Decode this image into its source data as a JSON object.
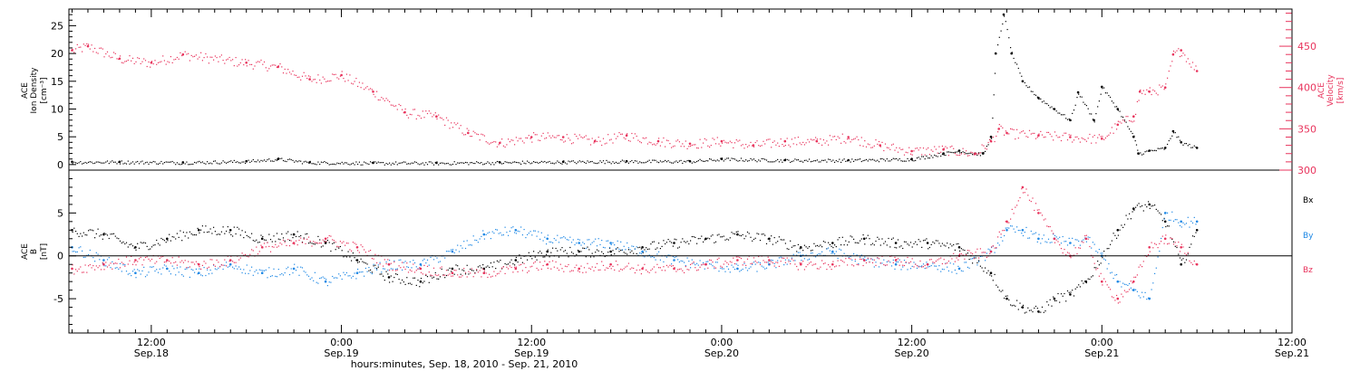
{
  "colors": {
    "density": "#000000",
    "velocity": "#e8335c",
    "bx": "#000000",
    "by": "#1e88e5",
    "bz": "#e8335c"
  },
  "time_axis": {
    "label": "hours:minutes, Sep. 18, 2010 - Sep. 21, 2010",
    "ticks": [
      {
        "h": 12,
        "time": "12:00",
        "day": "Sep.18"
      },
      {
        "h": 24,
        "time": "0:00",
        "day": "Sep.19"
      },
      {
        "h": 36,
        "time": "12:00",
        "day": "Sep.19"
      },
      {
        "h": 48,
        "time": "0:00",
        "day": "Sep.20"
      },
      {
        "h": 60,
        "time": "12:00",
        "day": "Sep.20"
      },
      {
        "h": 72,
        "time": "0:00",
        "day": "Sep.21"
      },
      {
        "h": 84,
        "time": "12:00",
        "day": "Sep.21"
      }
    ]
  },
  "panel_top": {
    "left_label": [
      "ACE",
      "Ion Density",
      "[cm⁻³]"
    ],
    "right_label": [
      "ACE",
      "Velocity",
      "[km/s]"
    ],
    "left_ticks": [
      "0",
      "5",
      "10",
      "15",
      "20",
      "25"
    ],
    "right_ticks": [
      "300",
      "350",
      "400",
      "450"
    ]
  },
  "panel_bottom": {
    "left_label": [
      "ACE",
      "B",
      "[nT]"
    ],
    "left_ticks": [
      "-5",
      "0",
      "5"
    ],
    "legend": [
      "Bx",
      "By",
      "Bz"
    ]
  },
  "chart_data": [
    {
      "type": "scatter",
      "title": "",
      "xlabel": "hours:minutes, Sep. 18, 2010 - Sep. 21, 2010",
      "x_unit": "hours from 2010-09-18 00:00",
      "xlim": [
        6.8,
        84
      ],
      "series": [
        {
          "name": "Ion Density",
          "axis": "left",
          "ylim": [
            -1,
            28
          ],
          "ylabel": "ACE Ion Density [cm^-3]",
          "x": [
            7,
            10,
            14,
            18,
            20,
            22,
            26,
            30,
            34,
            38,
            42,
            46,
            48,
            52,
            56,
            60,
            62,
            63,
            64,
            64.5,
            65,
            65.3,
            65.8,
            66.3,
            67,
            68,
            69,
            70,
            70.5,
            71.5,
            72,
            73,
            74,
            74.3,
            75,
            76,
            76.5,
            77,
            78
          ],
          "y": [
            0.5,
            0.5,
            0.4,
            0.6,
            1.0,
            0.4,
            0.3,
            0.3,
            0.4,
            0.5,
            0.6,
            0.6,
            1.0,
            0.8,
            0.8,
            1.0,
            2.0,
            2.5,
            2.0,
            2.0,
            5.0,
            20.0,
            27.0,
            20.0,
            15.0,
            12.0,
            10.0,
            8.0,
            13.0,
            8.0,
            14.0,
            10.0,
            5.0,
            2.0,
            2.5,
            3.0,
            6.0,
            4.0,
            3.0
          ]
        },
        {
          "name": "Velocity",
          "axis": "right",
          "ylim": [
            300,
            495
          ],
          "ylabel": "ACE Velocity [km/s]",
          "x": [
            7,
            8,
            10,
            12,
            14,
            18,
            20,
            22,
            24,
            26,
            28,
            30,
            32,
            34,
            36,
            38,
            40,
            42,
            44,
            46,
            48,
            50,
            52,
            54,
            56,
            58,
            60,
            62,
            64,
            65,
            65.5,
            66,
            68,
            70,
            72,
            73,
            74,
            74.4,
            75,
            76,
            76.5,
            77,
            78
          ],
          "y": [
            445,
            450,
            435,
            430,
            440,
            430,
            425,
            410,
            415,
            395,
            370,
            365,
            345,
            333,
            340,
            340,
            335,
            342,
            335,
            332,
            335,
            330,
            335,
            335,
            340,
            330,
            323,
            325,
            320,
            335,
            350,
            345,
            342,
            340,
            338,
            355,
            365,
            395,
            395,
            400,
            440,
            445,
            420
          ]
        }
      ]
    },
    {
      "type": "scatter",
      "title": "",
      "xlabel": "hours:minutes, Sep. 18, 2010 - Sep. 21, 2010",
      "x_unit": "hours from 2010-09-18 00:00",
      "xlim": [
        6.8,
        84
      ],
      "ylabel": "ACE B [nT]",
      "ylim": [
        -9,
        10
      ],
      "series": [
        {
          "name": "Bx",
          "x": [
            7,
            9,
            11,
            13,
            15,
            17,
            19,
            21,
            23,
            25,
            27,
            29,
            31,
            33,
            35,
            37,
            39,
            41,
            43,
            45,
            47,
            49,
            51,
            53,
            55,
            57,
            59,
            61,
            63,
            65,
            66,
            67,
            68,
            69,
            70,
            71,
            72,
            73,
            74,
            75,
            76,
            77,
            78
          ],
          "y": [
            3,
            2.5,
            1,
            2,
            3,
            3,
            2,
            2.5,
            1.5,
            -0.5,
            -2.5,
            -3,
            -1.5,
            -1.5,
            -0.5,
            0.5,
            0.5,
            0.5,
            1,
            1.5,
            2,
            2.5,
            2,
            1,
            1.5,
            2,
            1.5,
            1.5,
            1,
            -2,
            -5,
            -6,
            -6.5,
            -5,
            -4.5,
            -3,
            0,
            3,
            5.5,
            6,
            4,
            -1,
            3
          ]
        },
        {
          "name": "By",
          "x": [
            7,
            9,
            11,
            13,
            15,
            17,
            19,
            21,
            23,
            25,
            27,
            29,
            31,
            33,
            35,
            37,
            39,
            41,
            43,
            45,
            47,
            49,
            51,
            53,
            55,
            57,
            59,
            61,
            63,
            65,
            66,
            67,
            68,
            69,
            70,
            71,
            72,
            73,
            74,
            75,
            76,
            77,
            78
          ],
          "y": [
            1,
            -0.5,
            -2,
            -1.5,
            -2,
            -1,
            -2,
            -1.5,
            -3,
            -2,
            -1,
            -1,
            0.5,
            2.5,
            3,
            2,
            1.5,
            1.5,
            0.5,
            -0.5,
            -1,
            -1.5,
            -1,
            0,
            0.5,
            -0.5,
            -1,
            -1,
            -1.5,
            0.5,
            3,
            3,
            2,
            2,
            1.5,
            2,
            0,
            -3,
            -4,
            -5,
            5,
            4,
            4
          ]
        },
        {
          "name": "Bz",
          "x": [
            7,
            9,
            11,
            13,
            15,
            17,
            19,
            21,
            23,
            25,
            27,
            29,
            31,
            33,
            35,
            37,
            39,
            41,
            43,
            45,
            47,
            49,
            51,
            53,
            55,
            57,
            59,
            61,
            63,
            65,
            66,
            67,
            68,
            69,
            70,
            71,
            72,
            73,
            74,
            75,
            76,
            77,
            78
          ],
          "y": [
            -1.5,
            -1,
            -0.5,
            -0.5,
            -1,
            -0.5,
            1,
            1.5,
            2,
            1,
            -1,
            -1.5,
            -2,
            -2,
            -1.5,
            -1,
            -1.5,
            -1,
            -1.5,
            -1.5,
            -1,
            -0.5,
            -0.5,
            -1,
            -1,
            -0.5,
            -0.5,
            -1,
            0,
            0.5,
            4,
            8,
            5,
            2,
            0,
            2,
            -3,
            -5,
            -3,
            1,
            2,
            1,
            -1
          ]
        }
      ]
    }
  ]
}
